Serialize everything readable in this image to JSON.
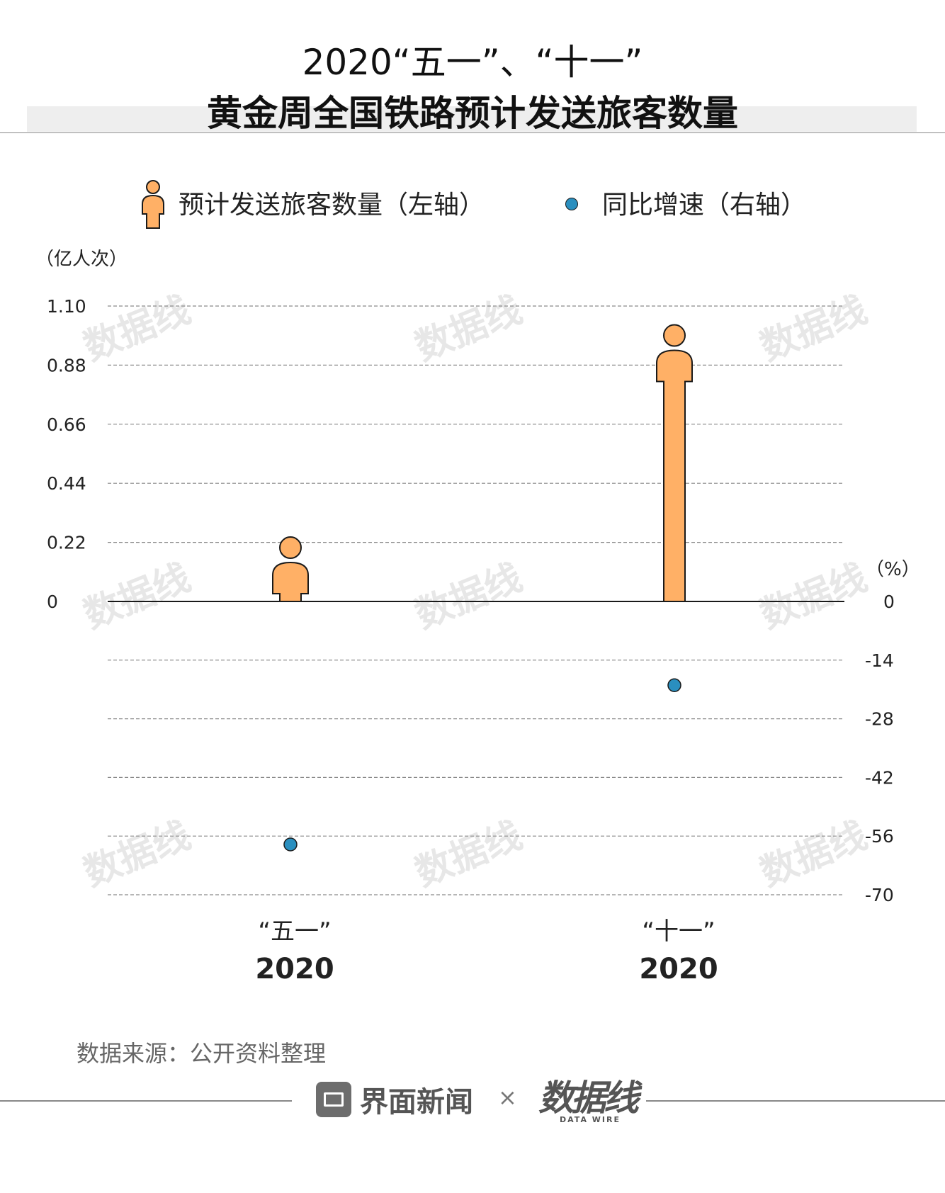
{
  "header": {
    "title_line1": "2020“五一”、“十一”",
    "title_line2": "黄金周全国铁路预计发送旅客数量"
  },
  "legend": {
    "passengers_label": "预计发送旅客数量（左轴）",
    "growth_label": "同比增速（右轴）"
  },
  "axes": {
    "left_unit": "（亿人次）",
    "right_unit": "（%）"
  },
  "chart_data": {
    "type": "bar",
    "categories": [
      "“五一” 2020",
      "“十一” 2020"
    ],
    "category_labels": [
      {
        "holiday": "“五一”",
        "year": "2020"
      },
      {
        "holiday": "“十一”",
        "year": "2020"
      }
    ],
    "series": [
      {
        "name": "预计发送旅客数量",
        "axis": "left",
        "type": "bar",
        "values": [
          0.24,
          1.03
        ]
      },
      {
        "name": "同比增速",
        "axis": "right",
        "type": "scatter",
        "values": [
          -58,
          -20
        ]
      }
    ],
    "left_axis": {
      "ticks": [
        "0",
        "0.22",
        "0.44",
        "0.66",
        "0.88",
        "1.10"
      ],
      "ylim": [
        0,
        1.1
      ]
    },
    "right_axis": {
      "ticks": [
        "0",
        "-14",
        "-28",
        "-42",
        "-56",
        "-70"
      ],
      "ylim": [
        -70,
        0
      ]
    },
    "grid": true,
    "colors": {
      "bar": "#ffb066",
      "dot": "#2a8fbf",
      "outline": "#1a1a1a"
    }
  },
  "source": "数据来源：公开资料整理",
  "footer": {
    "brand1": "界面新闻",
    "separator": "×",
    "brand2": "数据线",
    "brand2_sub": "DATA WIRE",
    "watermark": "数据线"
  }
}
